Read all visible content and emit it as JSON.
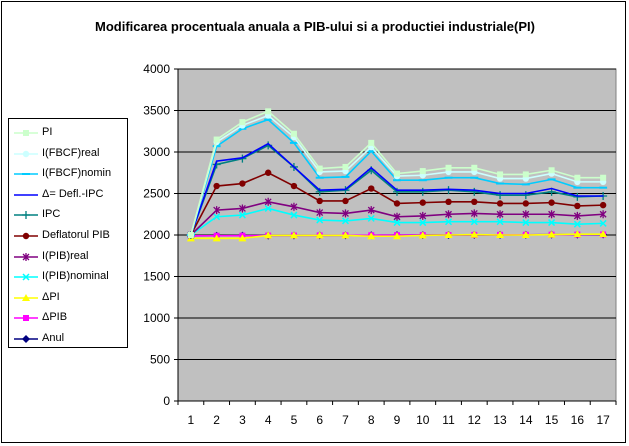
{
  "chart_data": {
    "type": "line",
    "title": "Modificarea procentuala anuala a PIB-ului si a productiei industriale(PI)",
    "xlabel": "",
    "ylabel": "",
    "x": [
      1,
      2,
      3,
      4,
      5,
      6,
      7,
      8,
      9,
      10,
      11,
      12,
      13,
      14,
      15,
      16,
      17
    ],
    "ylim": [
      0,
      4000
    ],
    "yticks": [
      0,
      500,
      1000,
      1500,
      2000,
      2500,
      3000,
      3500,
      4000
    ],
    "grid": true,
    "legend": "left",
    "plot_background": "#c0c0c0",
    "series": [
      {
        "name": "Anul",
        "color": "#000080",
        "marker": "diamond",
        "values": [
          1990,
          1991,
          1992,
          1993,
          1994,
          1995,
          1996,
          1997,
          1998,
          1999,
          2000,
          2001,
          2002,
          2003,
          2004,
          2005,
          2006
        ]
      },
      {
        "name": "ΔPIB",
        "color": "#ff00ff",
        "marker": "square",
        "values": [
          1990,
          1991,
          1992,
          1993,
          1994,
          1995,
          1996,
          1997,
          1998,
          1999,
          2000,
          2001,
          2002,
          2003,
          2004,
          2005,
          2006
        ]
      },
      {
        "name": "ΔPI",
        "color": "#ffff00",
        "marker": "triangle",
        "values": [
          1960,
          1960,
          1960,
          1995,
          1995,
          1995,
          1995,
          1985,
          1985,
          1995,
          2000,
          2005,
          2000,
          2000,
          2005,
          2010,
          2010
        ]
      },
      {
        "name": "I(PIB)nominal",
        "color": "#00ffff",
        "marker": "x",
        "values": [
          2000,
          2220,
          2240,
          2320,
          2240,
          2180,
          2170,
          2200,
          2150,
          2150,
          2160,
          2160,
          2160,
          2150,
          2150,
          2130,
          2140
        ]
      },
      {
        "name": "I(PIB)real",
        "color": "#800080",
        "marker": "star",
        "values": [
          2000,
          2300,
          2320,
          2400,
          2340,
          2270,
          2260,
          2300,
          2220,
          2230,
          2250,
          2260,
          2250,
          2250,
          2250,
          2230,
          2250
        ]
      },
      {
        "name": "Deflatorul PIB",
        "color": "#800000",
        "marker": "circle",
        "values": [
          2000,
          2590,
          2620,
          2750,
          2590,
          2410,
          2410,
          2560,
          2380,
          2390,
          2400,
          2400,
          2380,
          2380,
          2390,
          2350,
          2360
        ]
      },
      {
        "name": "IPC",
        "color": "#008080",
        "marker": "plus",
        "values": [
          2000,
          2850,
          2920,
          3080,
          2820,
          2520,
          2540,
          2780,
          2520,
          2520,
          2540,
          2520,
          2480,
          2480,
          2520,
          2460,
          2470
        ]
      },
      {
        "name": "Δ= Defl.-IPC",
        "color": "#0000ff",
        "marker": "none",
        "values": [
          2000,
          2890,
          2930,
          3100,
          2820,
          2540,
          2550,
          2810,
          2540,
          2540,
          2550,
          2540,
          2500,
          2500,
          2560,
          2470,
          2470
        ]
      },
      {
        "name": "I(FBCF)nomin",
        "color": "#00ccff",
        "marker": "dash",
        "values": [
          2000,
          3070,
          3280,
          3390,
          3110,
          2690,
          2700,
          3010,
          2660,
          2660,
          2690,
          2690,
          2620,
          2610,
          2670,
          2570,
          2570
        ]
      },
      {
        "name": "I(FBCF)real",
        "color": "#ccffff",
        "marker": "circle",
        "values": [
          2000,
          3120,
          3320,
          3440,
          3180,
          2760,
          2770,
          3060,
          2710,
          2720,
          2760,
          2760,
          2680,
          2680,
          2740,
          2640,
          2640
        ]
      },
      {
        "name": "PI",
        "color": "#ccffcc",
        "marker": "square",
        "values": [
          2000,
          3150,
          3360,
          3490,
          3220,
          2800,
          2820,
          3110,
          2740,
          2770,
          2810,
          2810,
          2730,
          2730,
          2780,
          2690,
          2690
        ]
      }
    ]
  },
  "legend": {
    "items": [
      {
        "label": "PI",
        "color": "#ccffcc",
        "marker": "square"
      },
      {
        "label": "I(FBCF)real",
        "color": "#ccffff",
        "marker": "circle"
      },
      {
        "label": "I(FBCF)nomin",
        "color": "#00ccff",
        "marker": "dash"
      },
      {
        "label": "Δ= Defl.-IPC",
        "color": "#0000ff",
        "marker": "none"
      },
      {
        "label": "IPC",
        "color": "#008080",
        "marker": "plus"
      },
      {
        "label": "Deflatorul PIB",
        "color": "#800000",
        "marker": "circle"
      },
      {
        "label": "I(PIB)real",
        "color": "#800080",
        "marker": "star"
      },
      {
        "label": "I(PIB)nominal",
        "color": "#00ffff",
        "marker": "x"
      },
      {
        "label": "ΔPI",
        "color": "#ffff00",
        "marker": "triangle"
      },
      {
        "label": "ΔPIB",
        "color": "#ff00ff",
        "marker": "square"
      },
      {
        "label": "Anul",
        "color": "#000080",
        "marker": "diamond"
      }
    ]
  }
}
